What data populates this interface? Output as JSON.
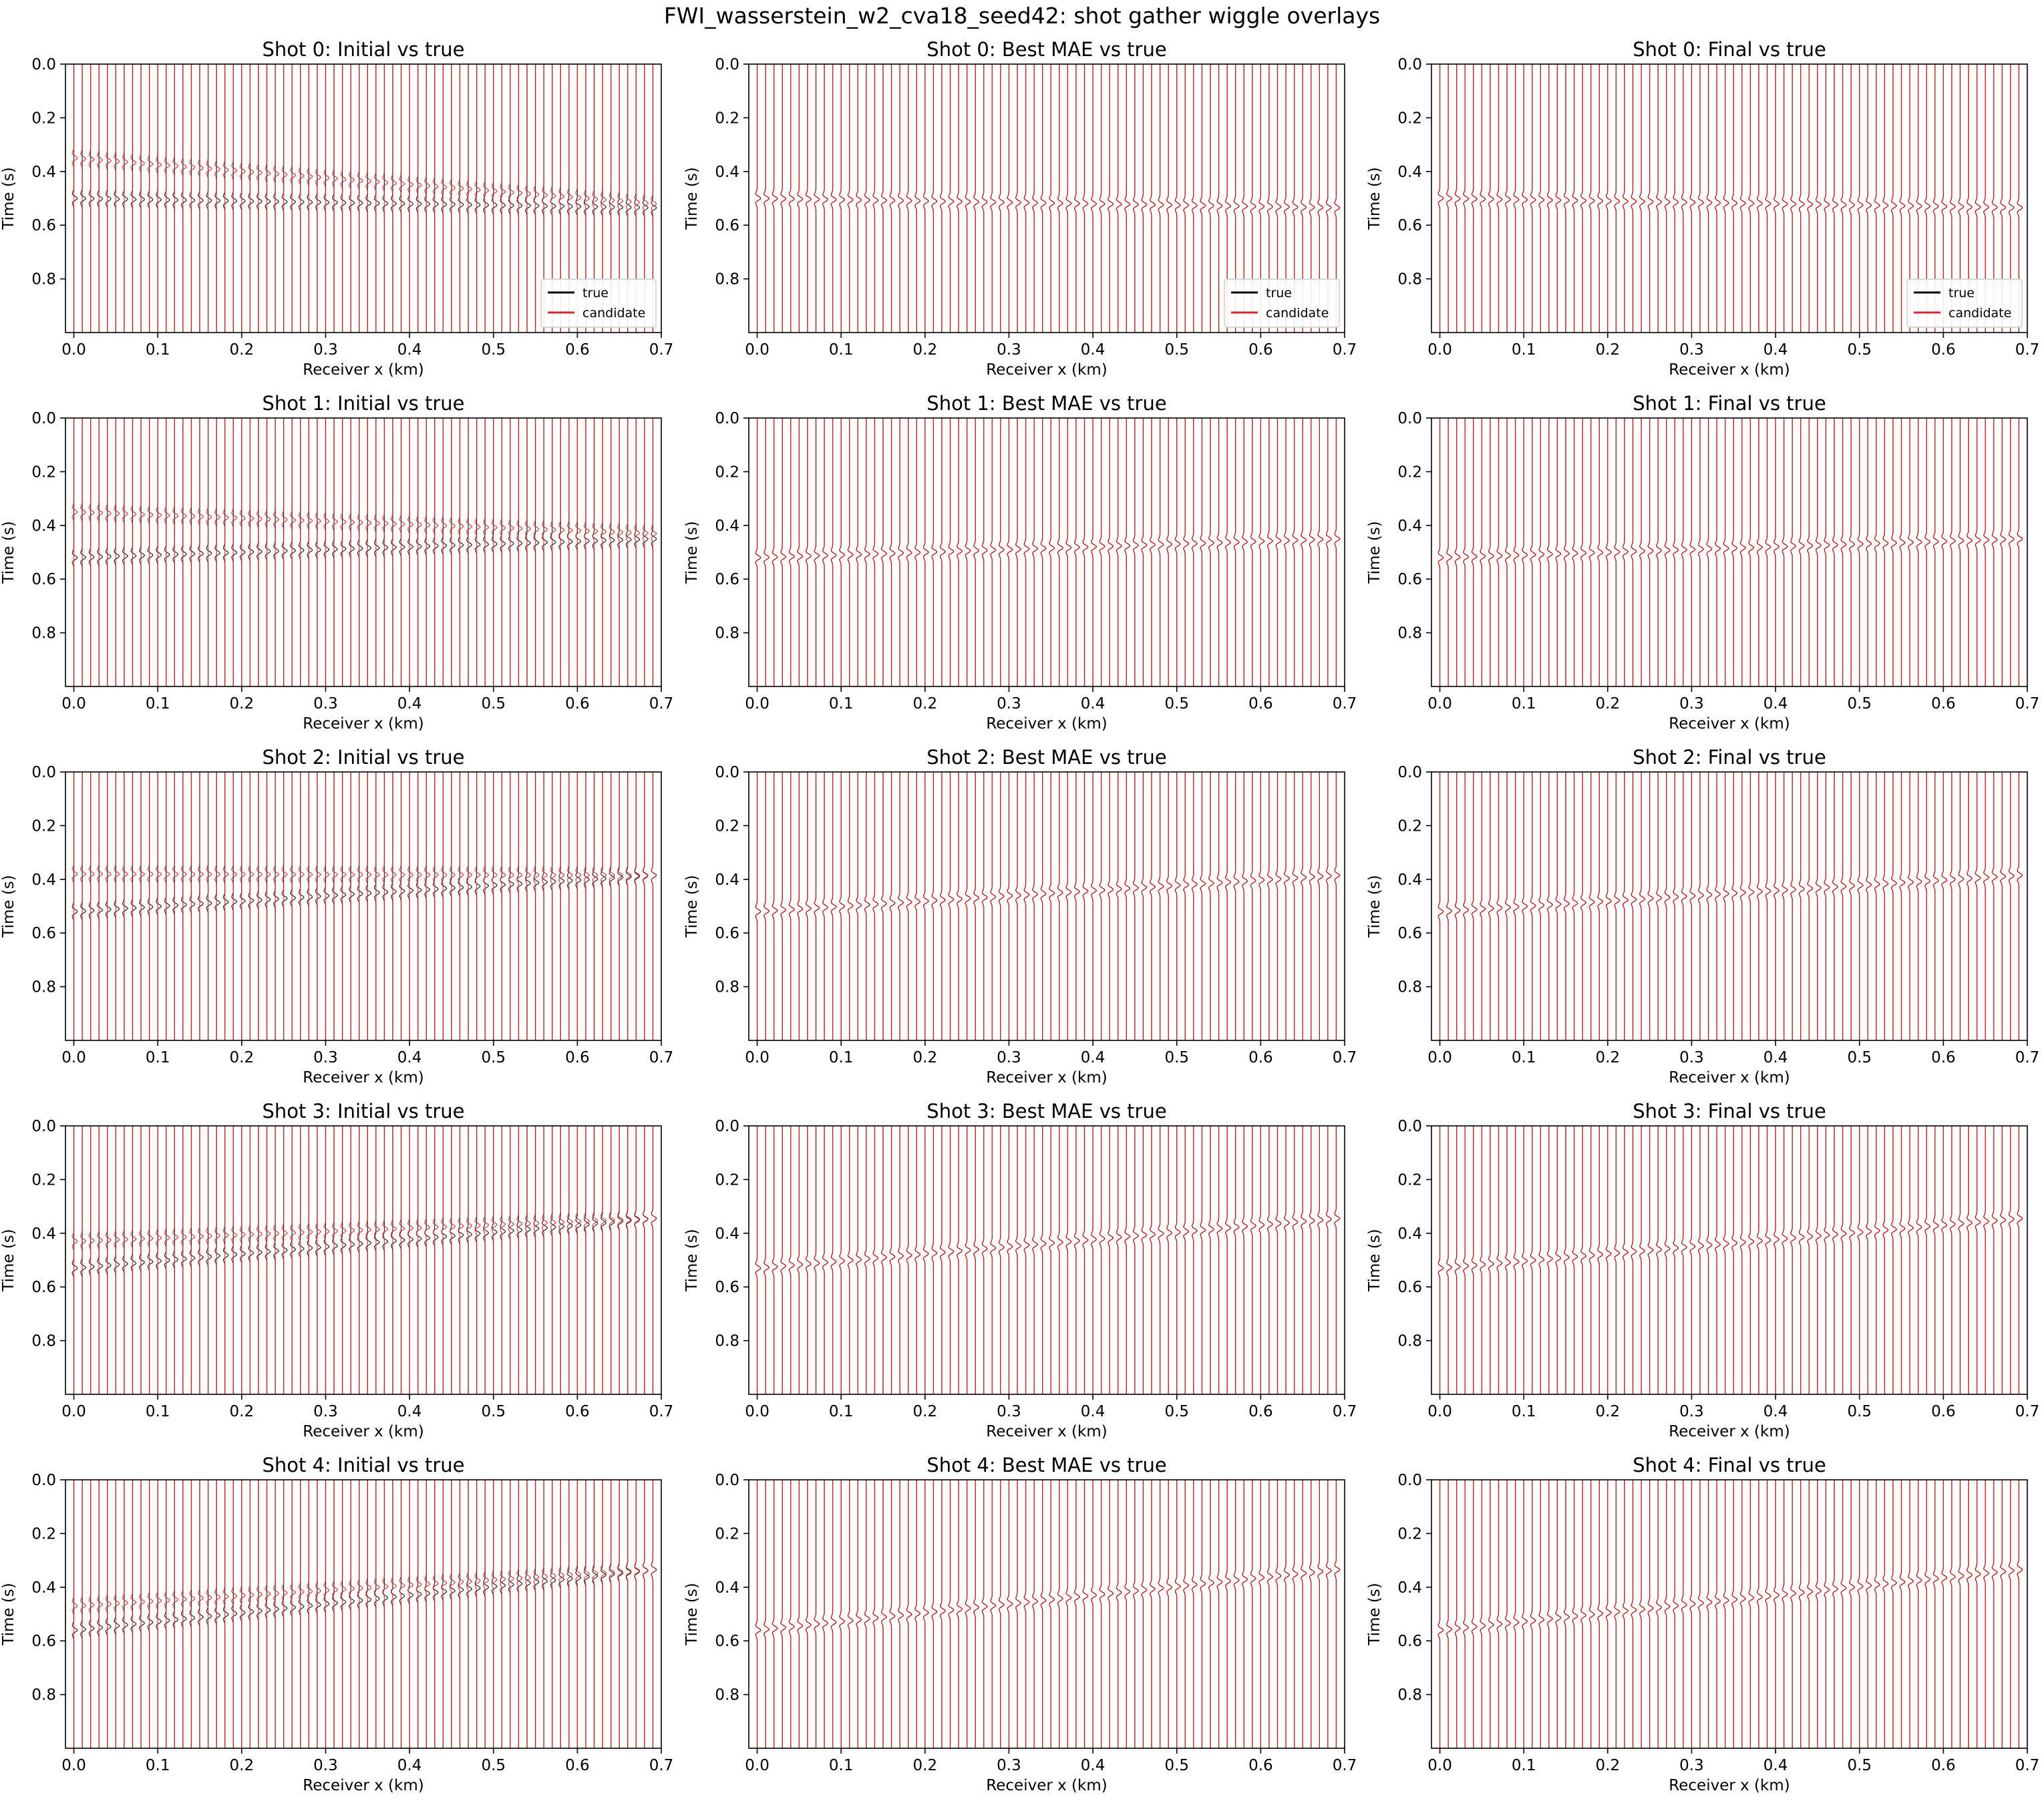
{
  "figure": {
    "suptitle": "FWI_wasserstein_w2_cva18_seed42: shot gather wiggle overlays"
  },
  "axes": {
    "xlabel": "Receiver x (km)",
    "ylabel": "Time (s)",
    "xlim": [
      -0.01,
      0.7
    ],
    "ylim": [
      0.0,
      1.0
    ],
    "xticks": [
      0.0,
      0.1,
      0.2,
      0.3,
      0.4,
      0.5,
      0.6,
      0.7
    ],
    "xtick_labels": [
      "0.0",
      "0.1",
      "0.2",
      "0.3",
      "0.4",
      "0.5",
      "0.6",
      "0.7"
    ],
    "yticks": [
      0.0,
      0.2,
      0.4,
      0.6,
      0.8
    ],
    "ytick_labels": [
      "0.0",
      "0.2",
      "0.4",
      "0.6",
      "0.8"
    ],
    "grid": false
  },
  "legend": {
    "placement": "lower-right",
    "entries": [
      {
        "label": "true",
        "color": "#000000"
      },
      {
        "label": "candidate",
        "color": "#d62728"
      }
    ]
  },
  "style": {
    "true_color": "#000000",
    "candidate_color": "#d62728"
  },
  "receivers": {
    "x_start": 0.0,
    "x_end": 0.69,
    "count": 70
  },
  "chart_data": [
    {
      "type": "line",
      "title": "Shot 0: Initial vs true",
      "shot": 0,
      "legend": true,
      "true_arrival": {
        "near": 0.5,
        "far": 0.535
      },
      "candidate_arrival": {
        "near": 0.35,
        "far": 0.52
      }
    },
    {
      "type": "line",
      "title": "Shot 0: Best MAE vs true",
      "shot": 0,
      "legend": true,
      "true_arrival": {
        "near": 0.5,
        "far": 0.535
      },
      "candidate_arrival": {
        "near": 0.5,
        "far": 0.535
      }
    },
    {
      "type": "line",
      "title": "Shot 0: Final vs true",
      "shot": 0,
      "legend": true,
      "true_arrival": {
        "near": 0.5,
        "far": 0.535
      },
      "candidate_arrival": {
        "near": 0.5,
        "far": 0.535
      }
    },
    {
      "type": "line",
      "title": "Shot 1: Initial vs true",
      "shot": 1,
      "legend": false,
      "true_arrival": {
        "near": 0.52,
        "far": 0.45
      },
      "candidate_arrival": {
        "near": 0.35,
        "far": 0.43
      }
    },
    {
      "type": "line",
      "title": "Shot 1: Best MAE vs true",
      "shot": 1,
      "legend": false,
      "true_arrival": {
        "near": 0.52,
        "far": 0.45
      },
      "candidate_arrival": {
        "near": 0.52,
        "far": 0.45
      }
    },
    {
      "type": "line",
      "title": "Shot 1: Final vs true",
      "shot": 1,
      "legend": false,
      "true_arrival": {
        "near": 0.52,
        "far": 0.45
      },
      "candidate_arrival": {
        "near": 0.52,
        "far": 0.45
      }
    },
    {
      "type": "line",
      "title": "Shot 2: Initial vs true",
      "shot": 2,
      "legend": false,
      "true_arrival": {
        "near": 0.52,
        "far": 0.385
      },
      "candidate_arrival": {
        "near": 0.38,
        "far": 0.385
      }
    },
    {
      "type": "line",
      "title": "Shot 2: Best MAE vs true",
      "shot": 2,
      "legend": false,
      "true_arrival": {
        "near": 0.52,
        "far": 0.385
      },
      "candidate_arrival": {
        "near": 0.52,
        "far": 0.385
      }
    },
    {
      "type": "line",
      "title": "Shot 2: Final vs true",
      "shot": 2,
      "legend": false,
      "true_arrival": {
        "near": 0.52,
        "far": 0.385
      },
      "candidate_arrival": {
        "near": 0.52,
        "far": 0.385
      }
    },
    {
      "type": "line",
      "title": "Shot 3: Initial vs true",
      "shot": 3,
      "legend": false,
      "true_arrival": {
        "near": 0.53,
        "far": 0.345
      },
      "candidate_arrival": {
        "near": 0.43,
        "far": 0.345
      }
    },
    {
      "type": "line",
      "title": "Shot 3: Best MAE vs true",
      "shot": 3,
      "legend": false,
      "true_arrival": {
        "near": 0.53,
        "far": 0.345
      },
      "candidate_arrival": {
        "near": 0.53,
        "far": 0.345
      }
    },
    {
      "type": "line",
      "title": "Shot 3: Final vs true",
      "shot": 3,
      "legend": false,
      "true_arrival": {
        "near": 0.53,
        "far": 0.345
      },
      "candidate_arrival": {
        "near": 0.53,
        "far": 0.345
      }
    },
    {
      "type": "line",
      "title": "Shot 4: Initial vs true",
      "shot": 4,
      "legend": false,
      "true_arrival": {
        "near": 0.56,
        "far": 0.335
      },
      "candidate_arrival": {
        "near": 0.47,
        "far": 0.335
      }
    },
    {
      "type": "line",
      "title": "Shot 4: Best MAE vs true",
      "shot": 4,
      "legend": false,
      "true_arrival": {
        "near": 0.56,
        "far": 0.335
      },
      "candidate_arrival": {
        "near": 0.56,
        "far": 0.335
      }
    },
    {
      "type": "line",
      "title": "Shot 4: Final vs true",
      "shot": 4,
      "legend": false,
      "true_arrival": {
        "near": 0.56,
        "far": 0.335
      },
      "candidate_arrival": {
        "near": 0.56,
        "far": 0.335
      }
    }
  ]
}
